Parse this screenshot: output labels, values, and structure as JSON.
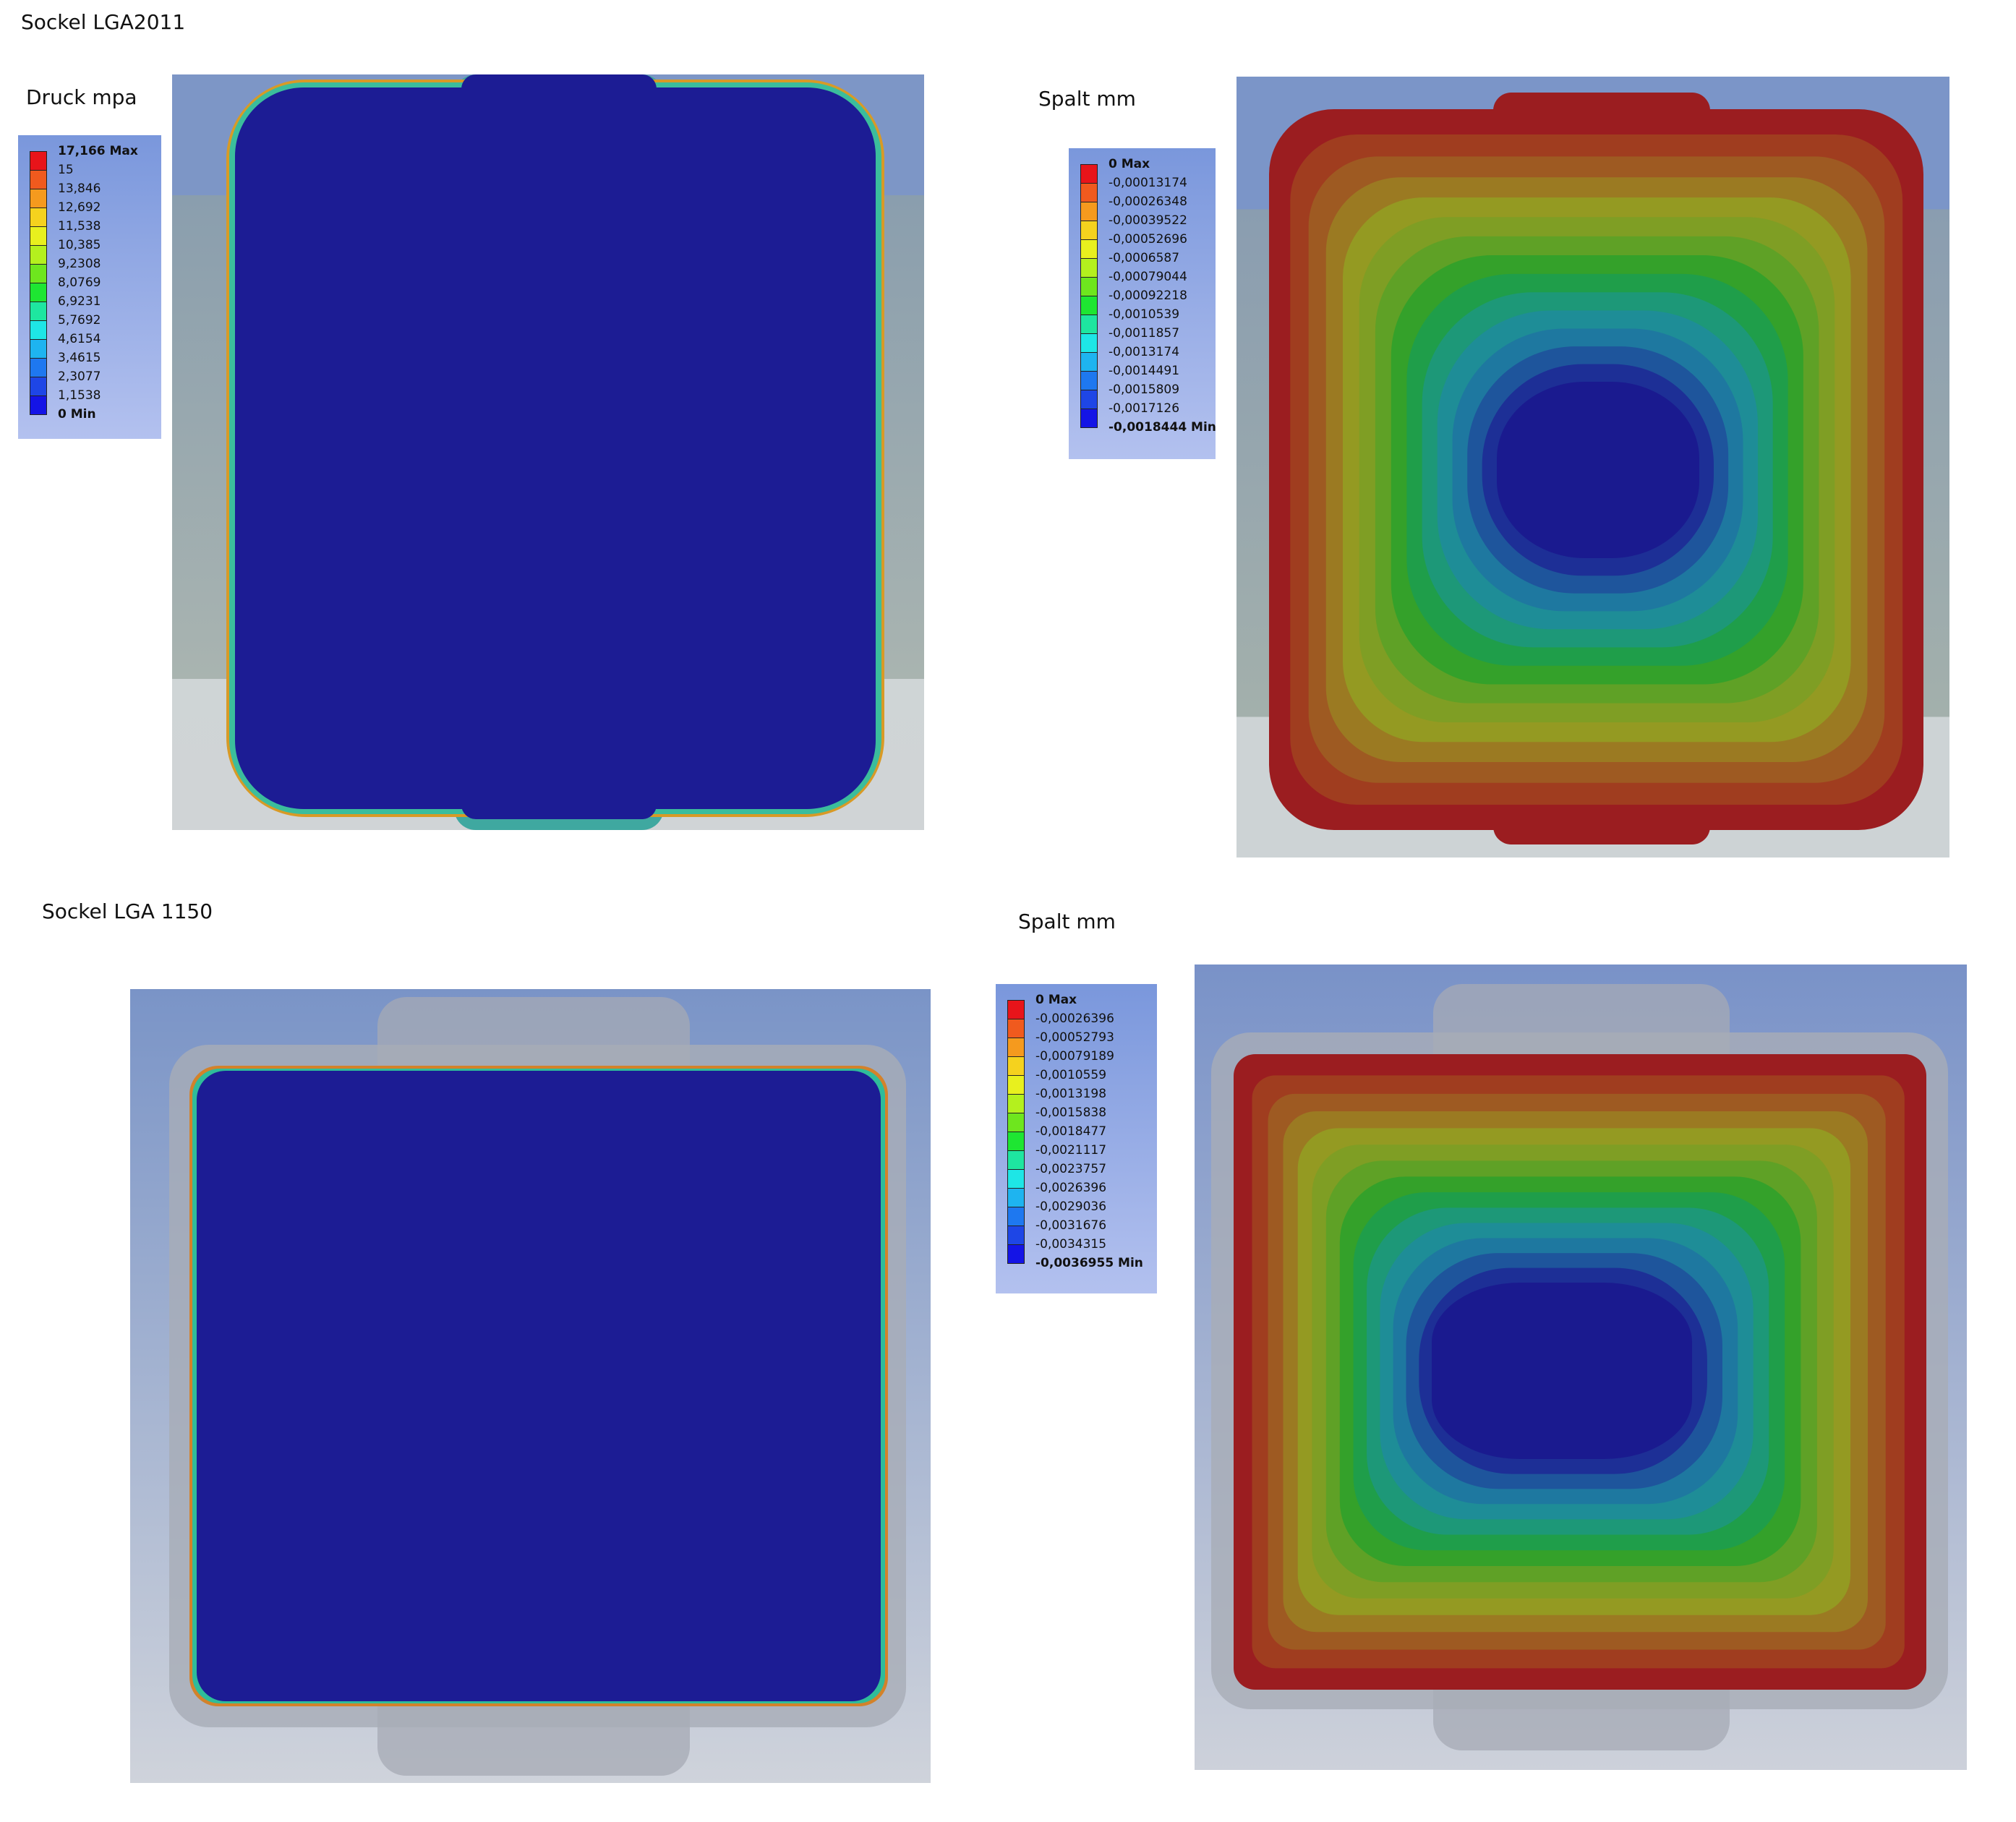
{
  "sections": [
    {
      "title": "Sockel LGA2011",
      "left": {
        "label": "Druck mpa",
        "legend": [
          "17,166 Max",
          "15",
          "13,846",
          "12,692",
          "11,538",
          "10,385",
          "9,2308",
          "8,0769",
          "6,9231",
          "5,7692",
          "4,6154",
          "3,4615",
          "2,3077",
          "1,1538",
          "0 Min"
        ]
      },
      "right": {
        "label": "Spalt mm",
        "legend": [
          "0 Max",
          "-0,00013174",
          "-0,00026348",
          "-0,00039522",
          "-0,00052696",
          "-0,0006587",
          "-0,00079044",
          "-0,00092218",
          "-0,0010539",
          "-0,0011857",
          "-0,0013174",
          "-0,0014491",
          "-0,0015809",
          "-0,0017126",
          "-0,0018444 Min"
        ]
      }
    },
    {
      "title": "Sockel LGA 1150",
      "right": {
        "label": "Spalt mm",
        "legend": [
          "0 Max",
          "-0,00026396",
          "-0,00052793",
          "-0,00079189",
          "-0,0010559",
          "-0,0013198",
          "-0,0015838",
          "-0,0018477",
          "-0,0021117",
          "-0,0023757",
          "-0,0026396",
          "-0,0029036",
          "-0,0031676",
          "-0,0034315",
          "-0,0036955 Min"
        ]
      }
    }
  ]
}
